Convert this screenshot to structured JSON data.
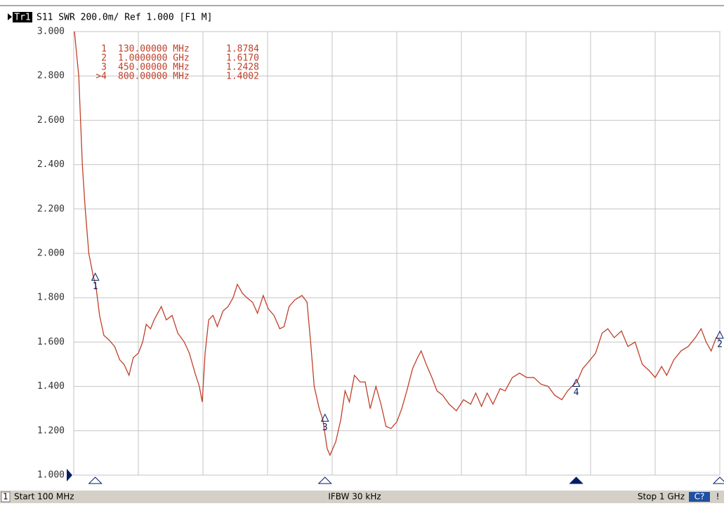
{
  "ui": {
    "trace_tag": "Tr1",
    "trace_info": "S11 SWR 200.0m/ Ref 1.000 [F1 M]",
    "channel": "1",
    "start": "Start 100 MHz",
    "ifbw": "IFBW 30 kHz",
    "stop": "Stop 1 GHz",
    "status": "C?",
    "flag": "!"
  },
  "chart_data": {
    "type": "line",
    "x": [
      101,
      107,
      112,
      116,
      121,
      127,
      131,
      136,
      142,
      149,
      157,
      164,
      170,
      177,
      183,
      190,
      196,
      201,
      207,
      212,
      222,
      229,
      237,
      245,
      254,
      261,
      269,
      275,
      279,
      283,
      288,
      294,
      300,
      308,
      315,
      322,
      328,
      335,
      341,
      349,
      356,
      364,
      371,
      379,
      387,
      393,
      400,
      408,
      418,
      425,
      430,
      435,
      442,
      447,
      453,
      457,
      465,
      472,
      478,
      484,
      491,
      499,
      506,
      513,
      521,
      528,
      535,
      542,
      550,
      557,
      564,
      572,
      579,
      584,
      591,
      599,
      606,
      614,
      623,
      633,
      643,
      653,
      660,
      668,
      676,
      684,
      694,
      701,
      711,
      721,
      731,
      741,
      751,
      761,
      770,
      780,
      788,
      794,
      801,
      809,
      817,
      827,
      836,
      844,
      853,
      863,
      872,
      882,
      892,
      902,
      910,
      919,
      926,
      936,
      946,
      956,
      966,
      974,
      981,
      988,
      995,
      1000
    ],
    "series": [
      {
        "name": "S11",
        "color": "#c0402a",
        "values": [
          3.0,
          2.8,
          2.4,
          2.2,
          2.0,
          1.9,
          1.85,
          1.72,
          1.63,
          1.61,
          1.58,
          1.52,
          1.5,
          1.45,
          1.53,
          1.55,
          1.6,
          1.68,
          1.66,
          1.7,
          1.76,
          1.7,
          1.72,
          1.64,
          1.6,
          1.55,
          1.46,
          1.4,
          1.33,
          1.55,
          1.7,
          1.72,
          1.67,
          1.74,
          1.76,
          1.8,
          1.86,
          1.82,
          1.8,
          1.78,
          1.73,
          1.81,
          1.75,
          1.72,
          1.66,
          1.67,
          1.76,
          1.79,
          1.81,
          1.78,
          1.6,
          1.4,
          1.3,
          1.25,
          1.12,
          1.09,
          1.15,
          1.25,
          1.38,
          1.33,
          1.45,
          1.42,
          1.42,
          1.3,
          1.4,
          1.32,
          1.22,
          1.21,
          1.24,
          1.3,
          1.38,
          1.48,
          1.53,
          1.56,
          1.5,
          1.44,
          1.38,
          1.36,
          1.32,
          1.29,
          1.34,
          1.32,
          1.37,
          1.31,
          1.37,
          1.32,
          1.39,
          1.38,
          1.44,
          1.46,
          1.44,
          1.44,
          1.41,
          1.4,
          1.36,
          1.34,
          1.38,
          1.4,
          1.42,
          1.48,
          1.51,
          1.55,
          1.64,
          1.66,
          1.62,
          1.65,
          1.58,
          1.6,
          1.5,
          1.47,
          1.44,
          1.49,
          1.45,
          1.52,
          1.56,
          1.58,
          1.62,
          1.66,
          1.6,
          1.56,
          1.62,
          1.61
        ]
      }
    ],
    "xlim": [
      100,
      1000
    ],
    "xticks": [
      100,
      190,
      280,
      370,
      460,
      550,
      640,
      730,
      820,
      910,
      1000
    ],
    "ylim": [
      1,
      3
    ],
    "yticks": [
      {
        "value": 1,
        "label": "1.000"
      },
      {
        "value": 1.2,
        "label": "1.200"
      },
      {
        "value": 1.4,
        "label": "1.400"
      },
      {
        "value": 1.6,
        "label": "1.600"
      },
      {
        "value": 1.8,
        "label": "1.800"
      },
      {
        "value": 2,
        "label": "2.000"
      },
      {
        "value": 2.2,
        "label": "2.200"
      },
      {
        "value": 2.4,
        "label": "2.400"
      },
      {
        "value": 2.6,
        "label": "2.600"
      },
      {
        "value": 2.8,
        "label": "2.800"
      },
      {
        "value": 3,
        "label": "3.000"
      }
    ],
    "grid": true,
    "markers": {
      "ids": [
        "1",
        "2",
        "3",
        "4"
      ],
      "table_ids": [
        "1",
        "2",
        "3",
        ">4"
      ],
      "x": [
        130,
        1000,
        450,
        800
      ],
      "x_labels": [
        "130.00000 MHz",
        "1.0000000 GHz",
        "450.00000 MHz",
        "800.00000 MHz"
      ],
      "values": [
        1.8784,
        1.617,
        1.2428,
        1.4002
      ],
      "value_labels": [
        "1.8784",
        "1.6170",
        "1.2428",
        "1.4002"
      ],
      "active_marker": 3
    }
  }
}
